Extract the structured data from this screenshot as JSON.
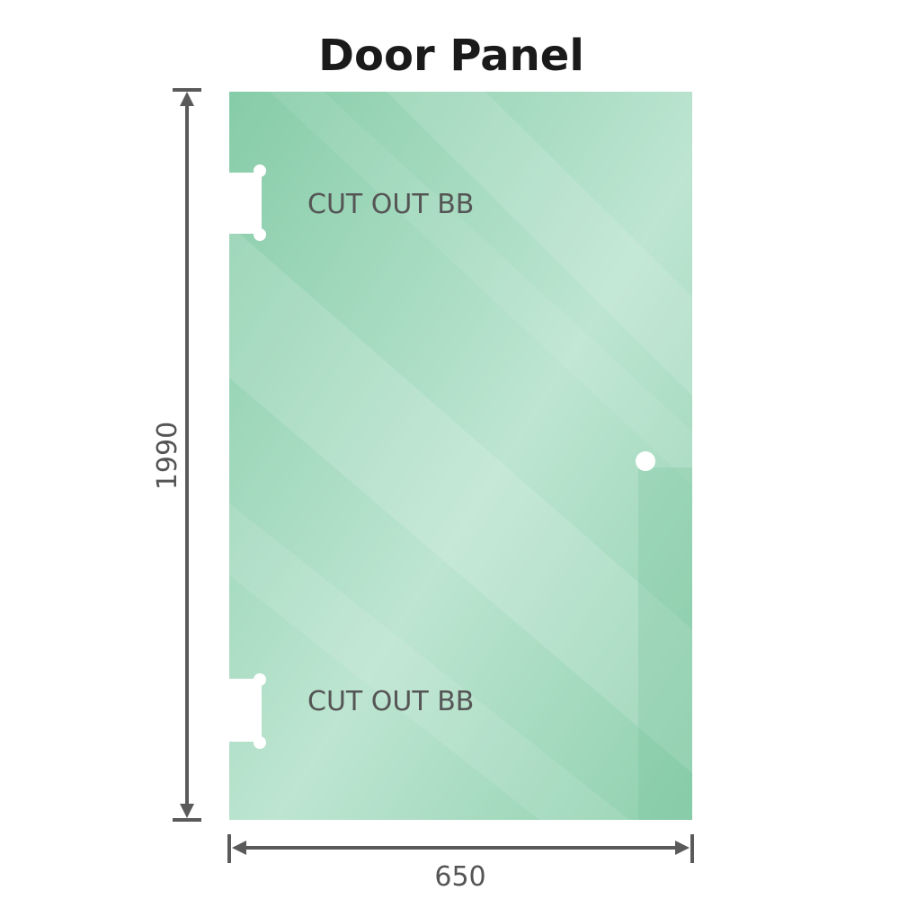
{
  "title": "Door Panel",
  "labels": {
    "cutout_top": "CUT OUT BB",
    "cutout_bottom": "CUT OUT BB"
  },
  "dimensions": {
    "height": "1990",
    "width": "650"
  },
  "colors": {
    "glass": "#8fd0ae",
    "glass_light": "#bfe6d2",
    "dimension_line": "#5a5a5a"
  }
}
